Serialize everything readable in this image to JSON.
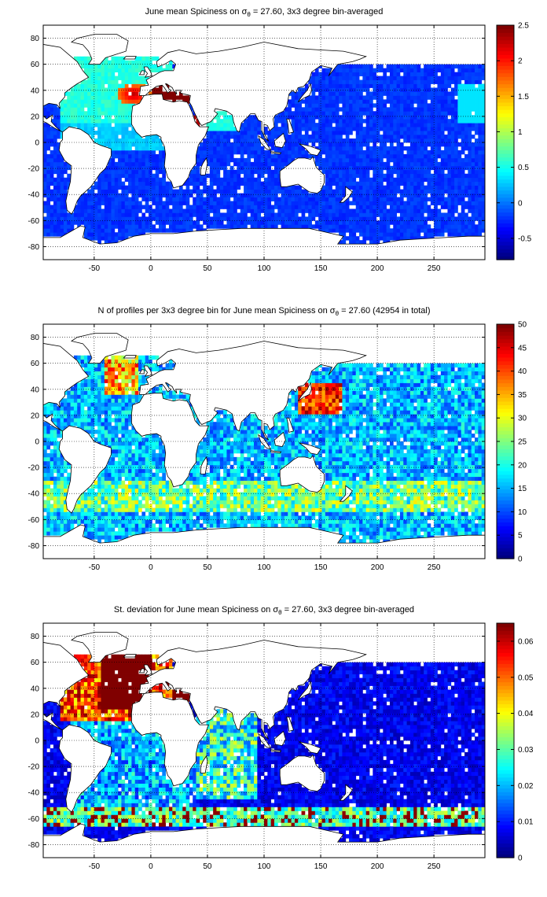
{
  "chart_data": [
    {
      "type": "heatmap",
      "title": "June mean Spiciness on σ_θ = 27.60, 3x3 degree bin-averaged",
      "title_parts": {
        "pre": "June mean Spiciness on σ",
        "sub": "θ",
        "post": " = 27.60, 3x3 degree bin-averaged"
      },
      "xlim": [
        -95,
        295
      ],
      "ylim": [
        -90,
        90
      ],
      "xticks": [
        -50,
        0,
        50,
        100,
        150,
        200,
        250
      ],
      "yticks": [
        -80,
        -60,
        -40,
        -20,
        0,
        20,
        40,
        60,
        80
      ],
      "colorbar": {
        "min": -0.8,
        "max": 2.5,
        "ticks": [
          -0.5,
          0,
          0.5,
          1,
          1.5,
          2,
          2.5
        ],
        "tick_labels": [
          "-0.5",
          "0",
          "0.5",
          "1",
          "1.5",
          "2",
          "2.5"
        ]
      },
      "grid": true,
      "field": "spiciness"
    },
    {
      "type": "heatmap",
      "title": "N of profiles per 3x3 degree bin for June mean Spiciness on σ_θ = 27.60 (42954 in total)",
      "title_parts": {
        "pre": "N of profiles per 3x3 degree bin for June mean Spiciness on σ",
        "sub": "θ",
        "post": " = 27.60 (42954 in total)"
      },
      "xlim": [
        -95,
        295
      ],
      "ylim": [
        -90,
        90
      ],
      "xticks": [
        -50,
        0,
        50,
        100,
        150,
        200,
        250
      ],
      "yticks": [
        -80,
        -60,
        -40,
        -20,
        0,
        20,
        40,
        60,
        80
      ],
      "colorbar": {
        "min": 0,
        "max": 50,
        "ticks": [
          0,
          5,
          10,
          15,
          20,
          25,
          30,
          35,
          40,
          45,
          50
        ],
        "tick_labels": [
          "0",
          "5",
          "10",
          "15",
          "20",
          "25",
          "30",
          "35",
          "40",
          "45",
          "50"
        ]
      },
      "grid": true,
      "field": "count"
    },
    {
      "type": "heatmap",
      "title": "St. deviation for June mean Spiciness on σ_θ = 27.60, 3x3 degree bin-averaged",
      "title_parts": {
        "pre": "St. deviation for June mean Spiciness on σ",
        "sub": "θ",
        "post": " = 27.60, 3x3 degree bin-averaged"
      },
      "xlim": [
        -95,
        295
      ],
      "ylim": [
        -90,
        90
      ],
      "xticks": [
        -50,
        0,
        50,
        100,
        150,
        200,
        250
      ],
      "yticks": [
        -80,
        -60,
        -40,
        -20,
        0,
        20,
        40,
        60,
        80
      ],
      "colorbar": {
        "min": 0,
        "max": 0.065,
        "ticks": [
          0,
          0.01,
          0.02,
          0.03,
          0.04,
          0.05,
          0.06
        ],
        "tick_labels": [
          "0",
          "0.01",
          "0.02",
          "0.03",
          "0.04",
          "0.05",
          "0.06"
        ]
      },
      "grid": true,
      "field": "stdev"
    }
  ],
  "colormap": "jet"
}
